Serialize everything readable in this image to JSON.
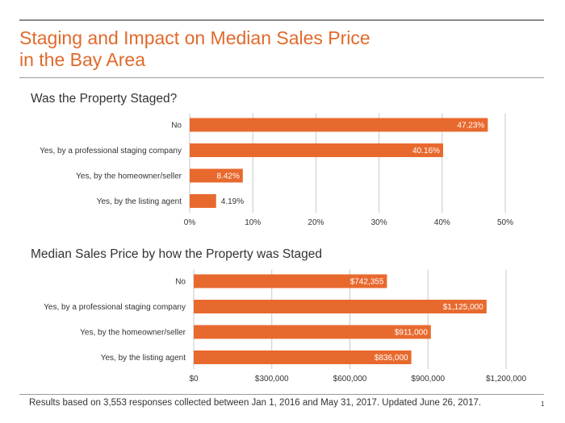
{
  "header": {
    "title_line1": "Staging and Impact on Median Sales Price",
    "title_line2": "in the Bay Area"
  },
  "footer": {
    "note": "Results based on 3,553 responses collected between Jan 1, 2016 and May 31, 2017. Updated June 26, 2017.",
    "page_number": "1"
  },
  "colors": {
    "bar": "#e8692e",
    "title": "#e06a2c",
    "grid": "#c8c8c8"
  },
  "chart_data": [
    {
      "type": "bar",
      "orientation": "horizontal",
      "title": "Was the Property Staged?",
      "categories": [
        "No",
        "Yes, by a professional staging company",
        "Yes, by the homeowner/seller",
        "Yes, by the listing agent"
      ],
      "values": [
        47.23,
        40.16,
        8.42,
        4.19
      ],
      "value_labels": [
        "47.23%",
        "40.16%",
        "8.42%",
        "4.19%"
      ],
      "xlim": [
        0,
        50
      ],
      "ticks": [
        0,
        10,
        20,
        30,
        40,
        50
      ],
      "tick_labels": [
        "0%",
        "10%",
        "20%",
        "30%",
        "40%",
        "50%"
      ],
      "grid": true
    },
    {
      "type": "bar",
      "orientation": "horizontal",
      "title": "Median Sales Price by how the Property was Staged",
      "categories": [
        "No",
        "Yes, by a professional staging company",
        "Yes, by the homeowner/seller",
        "Yes, by the listing agent"
      ],
      "values": [
        742355,
        1125000,
        911000,
        836000
      ],
      "value_labels": [
        "$742,355",
        "$1,125,000",
        "$911,000",
        "$836,000"
      ],
      "xlim": [
        0,
        1200000
      ],
      "ticks": [
        0,
        300000,
        600000,
        900000,
        1200000
      ],
      "tick_labels": [
        "$0",
        "$300,000",
        "$600,000",
        "$900,000",
        "$1,200,000"
      ],
      "grid": true
    }
  ]
}
